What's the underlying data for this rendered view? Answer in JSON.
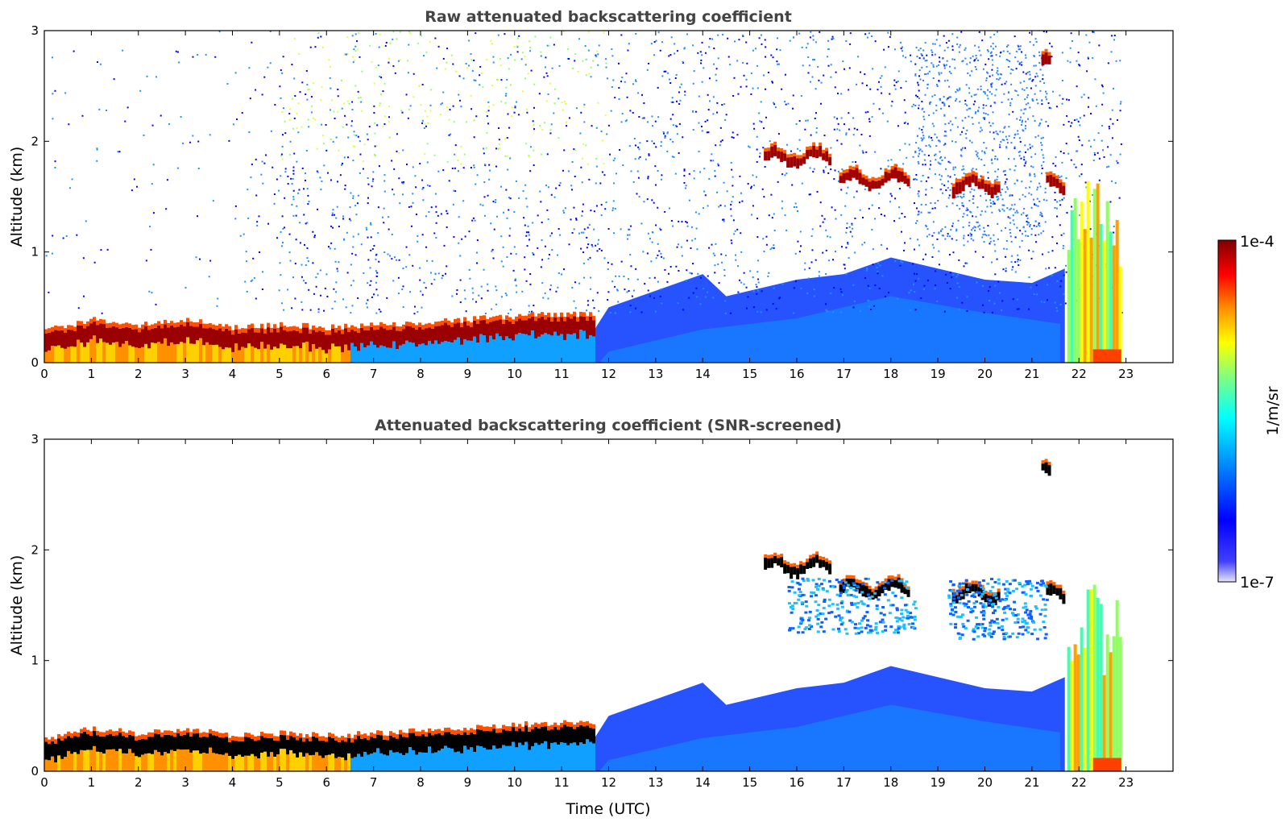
{
  "chart_data": [
    {
      "type": "heatmap",
      "title": "Raw attenuated backscattering coefficient",
      "xlabel": "",
      "ylabel": "Altitude (km)",
      "xlim": [
        0,
        24
      ],
      "ylim": [
        0,
        3
      ],
      "xticks": [
        "0",
        "1",
        "2",
        "3",
        "4",
        "5",
        "6",
        "7",
        "8",
        "9",
        "10",
        "11",
        "12",
        "13",
        "14",
        "15",
        "16",
        "17",
        "18",
        "19",
        "20",
        "21",
        "22",
        "23"
      ],
      "yticks": [
        "0",
        "1",
        "2",
        "3"
      ],
      "data_end_time": 22.9,
      "features": {
        "aerosol_layer_top_km": [
          [
            0,
            0.25
          ],
          [
            1,
            0.35
          ],
          [
            2,
            0.3
          ],
          [
            3,
            0.35
          ],
          [
            4,
            0.28
          ],
          [
            5,
            0.3
          ],
          [
            6,
            0.28
          ],
          [
            7,
            0.3
          ],
          [
            8,
            0.33
          ],
          [
            9,
            0.35
          ],
          [
            10,
            0.38
          ],
          [
            11,
            0.4
          ],
          [
            11.7,
            0.4
          ]
        ],
        "clouds": [
          {
            "t_start": 15.3,
            "t_end": 16.7,
            "altitude_km": 1.85
          },
          {
            "t_start": 16.9,
            "t_end": 18.4,
            "altitude_km": 1.65
          },
          {
            "t_start": 19.3,
            "t_end": 20.3,
            "altitude_km": 1.6
          },
          {
            "t_start": 21.3,
            "t_end": 21.7,
            "altitude_km": 1.6
          },
          {
            "t_start": 21.2,
            "t_end": 21.35,
            "altitude_km": 2.7
          }
        ]
      }
    },
    {
      "type": "heatmap",
      "title": "Attenuated backscattering coefficient (SNR-screened)",
      "xlabel": "Time (UTC)",
      "ylabel": "Altitude (km)",
      "xlim": [
        0,
        24
      ],
      "ylim": [
        0,
        3
      ],
      "xticks": [
        "0",
        "1",
        "2",
        "3",
        "4",
        "5",
        "6",
        "7",
        "8",
        "9",
        "10",
        "11",
        "12",
        "13",
        "14",
        "15",
        "16",
        "17",
        "18",
        "19",
        "20",
        "21",
        "22",
        "23"
      ],
      "yticks": [
        "0",
        "1",
        "2",
        "3"
      ],
      "data_end_time": 22.9
    }
  ],
  "colorbar": {
    "label": "1/m/sr",
    "max_label": "1e-4",
    "min_label": "1e-7",
    "scale": "log",
    "colors": [
      "#e6e6f5",
      "#0000ff",
      "#00a0ff",
      "#00ffff",
      "#80ff80",
      "#ffff00",
      "#ff8000",
      "#ff0000",
      "#800000"
    ]
  }
}
